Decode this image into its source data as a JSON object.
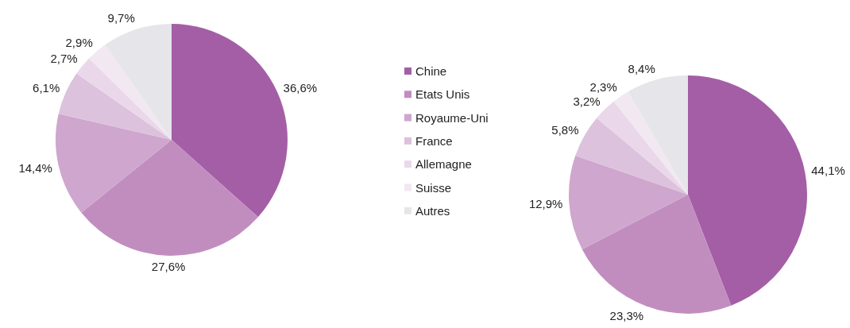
{
  "chart_data": [
    {
      "type": "pie",
      "categories": [
        "Chine",
        "Etats Unis",
        "Royaume-Uni",
        "France",
        "Allemagne",
        "Suisse",
        "Autres"
      ],
      "values": [
        36.6,
        27.6,
        14.4,
        6.1,
        2.7,
        2.9,
        9.7
      ],
      "value_labels": [
        "36,6%",
        "27,6%",
        "14,4%",
        "6,1%",
        "2,7%",
        "2,9%",
        "9,7%"
      ],
      "colors": [
        "#a45ea6",
        "#c18dbf",
        "#cfa6cd",
        "#dcc2dd",
        "#ead8ea",
        "#f1e8f1",
        "#e6e6ea"
      ],
      "legend": "right"
    },
    {
      "type": "pie",
      "categories": [
        null,
        null,
        null,
        null,
        null,
        null,
        null
      ],
      "values": [
        44.1,
        23.3,
        12.9,
        5.8,
        3.2,
        2.3,
        8.4
      ],
      "value_labels": [
        "44,1%",
        "23,3%",
        "12,9%",
        "5,8%",
        "3,2%",
        "2,3%",
        "8,4%"
      ],
      "colors": [
        "#a45ea6",
        "#c18dbf",
        "#cfa6cd",
        "#dcc2dd",
        "#ead8ea",
        "#f1e8f1",
        "#e6e6ea"
      ]
    }
  ]
}
